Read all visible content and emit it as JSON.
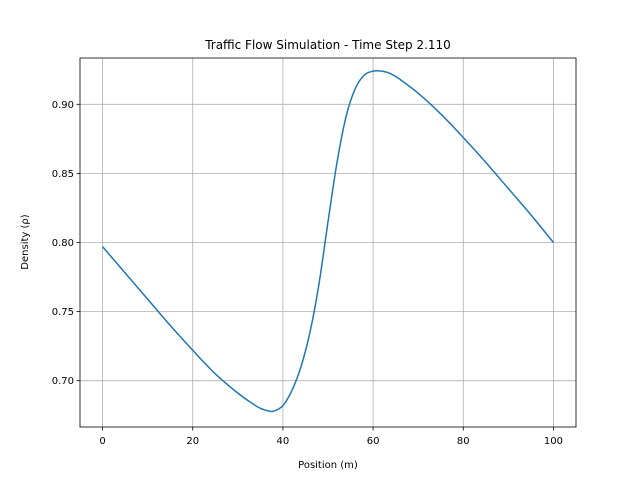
{
  "chart_data": {
    "type": "line",
    "title": "Traffic Flow Simulation - Time Step 2.110",
    "xlabel": "Position (m)",
    "ylabel": "Density (ρ)",
    "xlim": [
      -5,
      105
    ],
    "ylim": [
      0.6665,
      0.9335
    ],
    "xticks": [
      0,
      20,
      40,
      60,
      80,
      100
    ],
    "xtick_labels": [
      "0",
      "20",
      "40",
      "60",
      "80",
      "100"
    ],
    "yticks": [
      0.7,
      0.75,
      0.8,
      0.85,
      0.9
    ],
    "ytick_labels": [
      "0.70",
      "0.75",
      "0.80",
      "0.85",
      "0.90"
    ],
    "grid": true,
    "color": "#1f77b4",
    "series": [
      {
        "x": [
          0,
          5,
          10,
          15,
          20,
          25,
          30,
          33,
          35,
          37,
          38,
          40,
          42,
          44,
          46,
          48,
          50,
          52,
          54,
          56,
          58,
          60,
          62,
          64,
          66,
          70,
          75,
          80,
          85,
          90,
          95,
          100
        ],
        "y": [
          0.797,
          0.778,
          0.759,
          0.74,
          0.722,
          0.705,
          0.691,
          0.684,
          0.68,
          0.678,
          0.678,
          0.682,
          0.693,
          0.71,
          0.735,
          0.77,
          0.815,
          0.858,
          0.891,
          0.911,
          0.921,
          0.924,
          0.924,
          0.922,
          0.918,
          0.908,
          0.893,
          0.876,
          0.858,
          0.839,
          0.82,
          0.8
        ]
      }
    ]
  }
}
